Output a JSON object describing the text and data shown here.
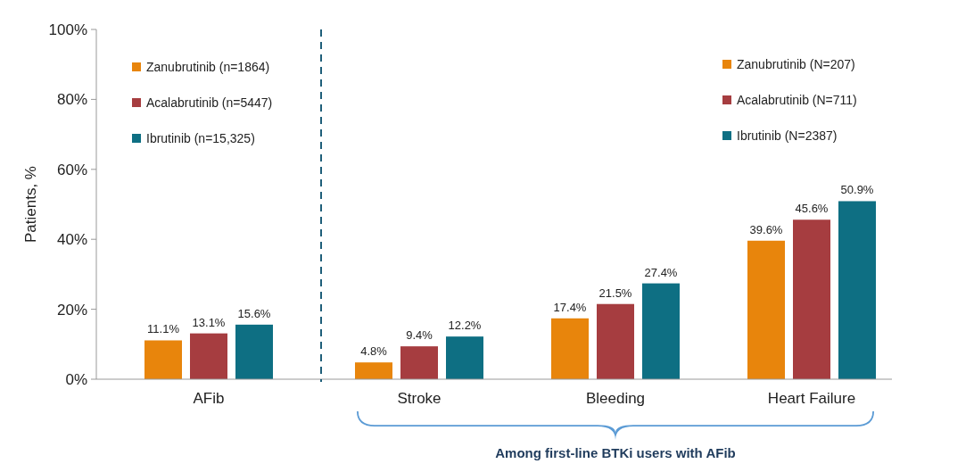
{
  "chart_data": [
    {
      "type": "bar",
      "ylabel": "Patients, %",
      "categories": [
        "AFib"
      ],
      "ylim": [
        0,
        100
      ],
      "yticks": [
        {
          "value": 0,
          "label": "0%"
        },
        {
          "value": 20,
          "label": "20%"
        },
        {
          "value": 40,
          "label": "40%"
        },
        {
          "value": 60,
          "label": "60%"
        },
        {
          "value": 80,
          "label": "80%"
        },
        {
          "value": 100,
          "label": "100%"
        }
      ],
      "legend": "top",
      "series": [
        {
          "name": "Zanubrutinib (n=1864)",
          "color": "#e8850c",
          "values": [
            11.1
          ],
          "value_labels": [
            "11.1%"
          ]
        },
        {
          "name": "Acalabrutinib (n=5447)",
          "color": "#a63d40",
          "values": [
            13.1
          ],
          "value_labels": [
            "13.1%"
          ]
        },
        {
          "name": "Ibrutinib (n=15,325)",
          "color": "#0e6f83",
          "values": [
            15.6
          ],
          "value_labels": [
            "15.6%"
          ]
        }
      ]
    },
    {
      "type": "bar",
      "categories": [
        "Stroke",
        "Bleeding",
        "Heart Failure"
      ],
      "ylim": [
        0,
        100
      ],
      "tick_labels": "x",
      "legend": "top right",
      "annotations": [
        "Among first-line BTKi users with AFib"
      ],
      "series": [
        {
          "name": "Zanubrutinib (N=207)",
          "color": "#e8850c",
          "values": [
            4.8,
            17.4,
            39.6
          ],
          "value_labels": [
            "4.8%",
            "17.4%",
            "39.6%"
          ]
        },
        {
          "name": "Acalabrutinib (N=711)",
          "color": "#a63d40",
          "values": [
            9.4,
            21.5,
            45.6
          ],
          "value_labels": [
            "9.4%",
            "21.5%",
            "45.6%"
          ]
        },
        {
          "name": "Ibrutinib (N=2387)",
          "color": "#0e6f83",
          "values": [
            12.2,
            27.4,
            50.9
          ],
          "value_labels": [
            "12.2%",
            "27.4%",
            "50.9%"
          ]
        }
      ]
    }
  ]
}
